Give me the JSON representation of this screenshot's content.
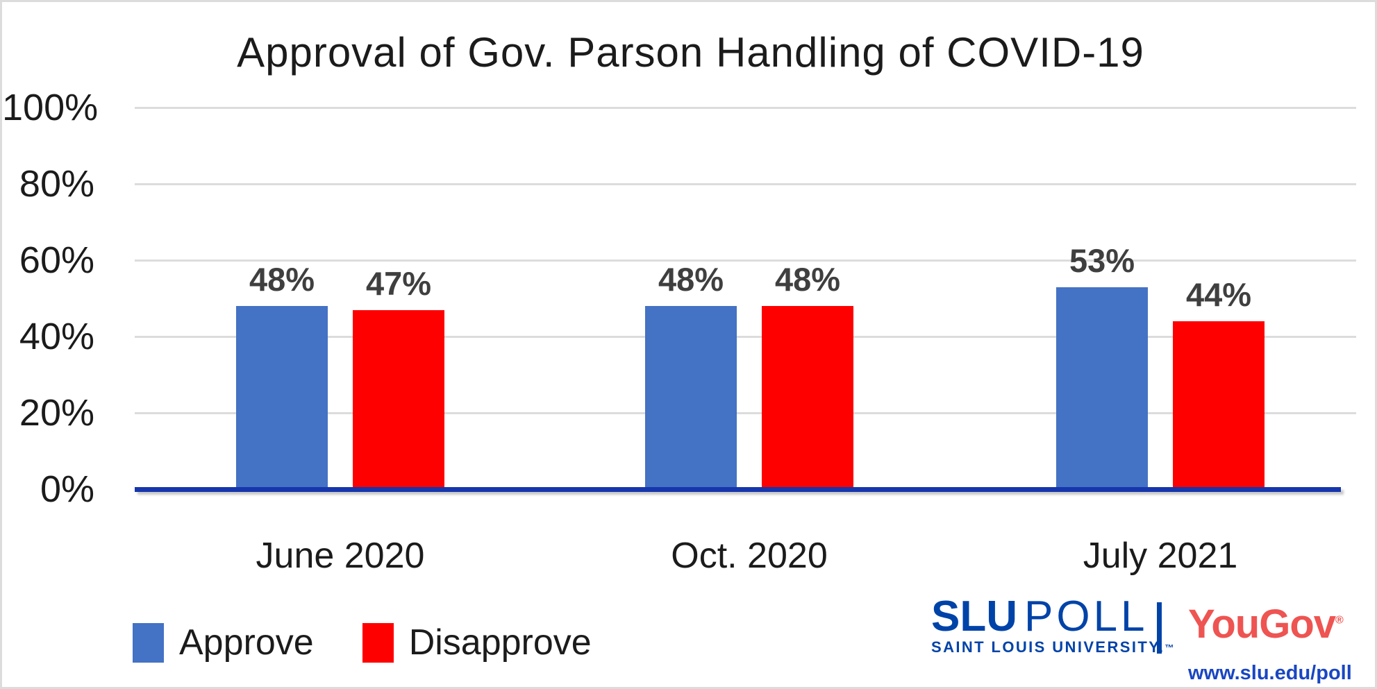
{
  "title": "Approval of Gov. Parson Handling of COVID-19",
  "chart_data": {
    "type": "bar",
    "categories": [
      "June 2020",
      "Oct. 2020",
      "July 2021"
    ],
    "series": [
      {
        "name": "Approve",
        "color": "#4472C4",
        "values": [
          48,
          48,
          53
        ]
      },
      {
        "name": "Disapprove",
        "color": "#FF0000",
        "values": [
          47,
          48,
          44
        ]
      }
    ],
    "value_labels": [
      [
        "48%",
        "48%",
        "53%"
      ],
      [
        "47%",
        "48%",
        "44%"
      ]
    ],
    "ylim": [
      0,
      100
    ],
    "yticks": [
      {
        "label": "100%",
        "value": 100
      },
      {
        "label": "80%",
        "value": 80
      },
      {
        "label": "60%",
        "value": 60
      },
      {
        "label": "40%",
        "value": 40
      },
      {
        "label": "20%",
        "value": 20
      },
      {
        "label": "0%",
        "value": 0
      }
    ],
    "grid": true,
    "legend_position": "bottom-left"
  },
  "colors": {
    "approve": "#4472C4",
    "disapprove": "#FF0000",
    "axis_line": "#1636AC",
    "gridline": "#DCDCDC",
    "value_label": "#3F3F3F",
    "slu_blue": "#0043A8",
    "yougov_red": "#EE5451",
    "url_blue": "#1A46C2"
  },
  "footer": {
    "slu_word": "SLU",
    "poll_word": "POLL",
    "slu_subtitle": "SAINT LOUIS UNIVERSITY.",
    "slu_tm": "™",
    "yougov": "YouGov",
    "yougov_reg": "®",
    "url": "www.slu.edu/poll"
  }
}
